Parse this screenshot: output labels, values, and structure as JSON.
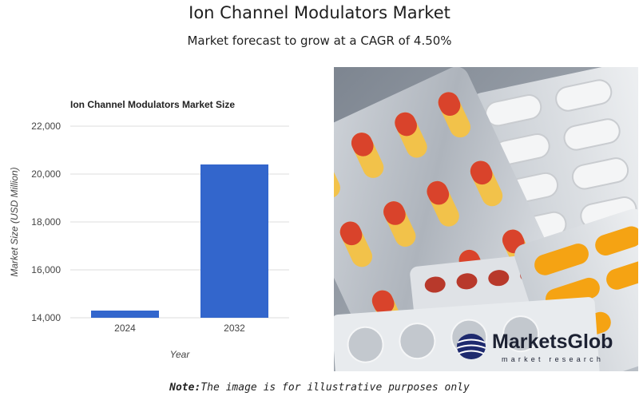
{
  "header": {
    "title": "Ion Channel Modulators Market",
    "subtitle": "Market forecast to grow at a CAGR of 4.50%"
  },
  "photo": {
    "brand_name": "MarketsGlob",
    "brand_tagline": "market research",
    "icon": "pill-blister-packs-photo"
  },
  "note": {
    "label": "Note:",
    "text": "The image is for illustrative purposes only"
  },
  "colors": {
    "bar": "#3366cc",
    "grid": "#dddddd",
    "text": "#222222"
  },
  "chart_data": {
    "type": "bar",
    "title": "Ion Channel Modulators Market Size",
    "xlabel": "Year",
    "ylabel": "Market Size (USD Million)",
    "categories": [
      "2024",
      "2032"
    ],
    "values": [
      14300,
      20400
    ],
    "ylim": [
      14000,
      22000
    ],
    "yticks": [
      14000,
      16000,
      18000,
      20000,
      22000
    ],
    "ytick_labels": [
      "14,000",
      "16,000",
      "18,000",
      "20,000",
      "22,000"
    ],
    "grid": true,
    "legend": "none"
  }
}
